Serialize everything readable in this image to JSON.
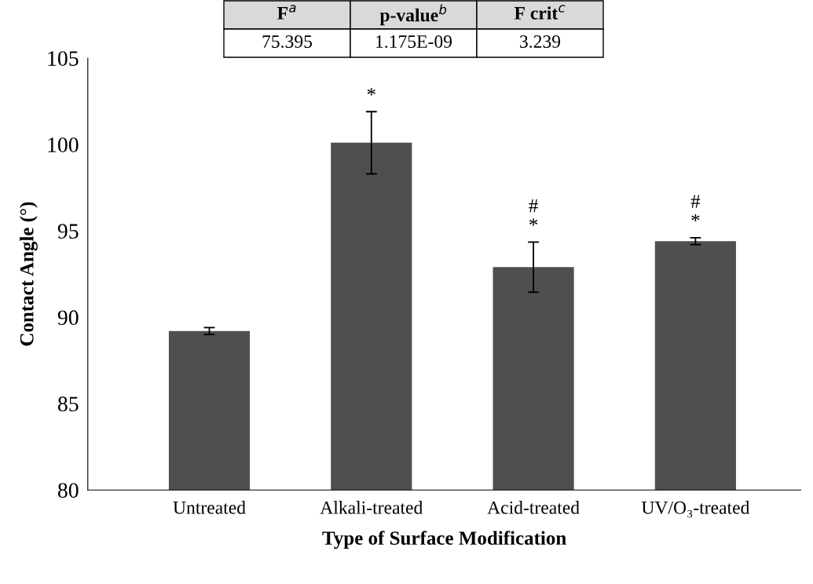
{
  "chart_data": {
    "type": "bar",
    "xlabel": "Type of Surface Modification",
    "ylabel": "Contact Angle (°)",
    "categories": [
      "Untreated",
      "Alkali-treated",
      "Acid-treated",
      "UV/O₃-treated"
    ],
    "values": [
      89.2,
      100.1,
      92.9,
      94.4
    ],
    "errors": [
      0.2,
      1.8,
      1.45,
      0.2
    ],
    "color": "#4f4f4f",
    "ylim": [
      80,
      105
    ],
    "yticks": [
      80,
      85,
      90,
      95,
      100,
      105
    ],
    "grid": false,
    "value_labels": [
      null,
      "*",
      "#\n*",
      "#\n*"
    ],
    "annotations": [
      "F$^{a}$",
      "p-value$^{b}$",
      "F crit$^{c}$",
      "75.395",
      "1.175E-09",
      "3.239"
    ]
  }
}
